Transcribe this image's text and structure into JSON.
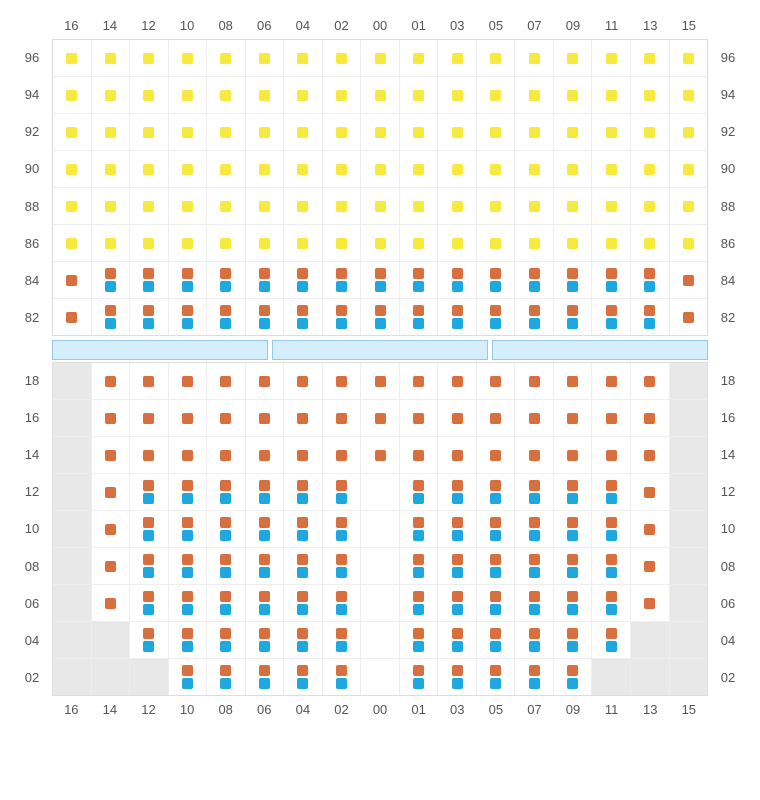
{
  "colors": {
    "yellow": "#f7e93e",
    "orange": "#d86f3f",
    "blue": "#1fa8e0",
    "gray": "#e8e8e8",
    "grid_border": "#eeeeee",
    "outer_border": "#dddddd",
    "label_color": "#555555",
    "divider_fill": "#d4eefc",
    "divider_border": "#95c9e6",
    "background": "#ffffff"
  },
  "typography": {
    "label_fontsize": 13,
    "font_family": "Arial"
  },
  "columns": [
    "16",
    "14",
    "12",
    "10",
    "08",
    "06",
    "04",
    "02",
    "00",
    "01",
    "03",
    "05",
    "07",
    "09",
    "11",
    "13",
    "15"
  ],
  "upper": {
    "rows": [
      "96",
      "94",
      "92",
      "90",
      "88",
      "86",
      "84",
      "82"
    ],
    "cells": [
      [
        "y",
        "y",
        "y",
        "y",
        "y",
        "y",
        "y",
        "y",
        "y",
        "y",
        "y",
        "y",
        "y",
        "y",
        "y",
        "y",
        "y"
      ],
      [
        "y",
        "y",
        "y",
        "y",
        "y",
        "y",
        "y",
        "y",
        "y",
        "y",
        "y",
        "y",
        "y",
        "y",
        "y",
        "y",
        "y"
      ],
      [
        "y",
        "y",
        "y",
        "y",
        "y",
        "y",
        "y",
        "y",
        "y",
        "y",
        "y",
        "y",
        "y",
        "y",
        "y",
        "y",
        "y"
      ],
      [
        "y",
        "y",
        "y",
        "y",
        "y",
        "y",
        "y",
        "y",
        "y",
        "y",
        "y",
        "y",
        "y",
        "y",
        "y",
        "y",
        "y"
      ],
      [
        "y",
        "y",
        "y",
        "y",
        "y",
        "y",
        "y",
        "y",
        "y",
        "y",
        "y",
        "y",
        "y",
        "y",
        "y",
        "y",
        "y"
      ],
      [
        "y",
        "y",
        "y",
        "y",
        "y",
        "y",
        "y",
        "y",
        "y",
        "y",
        "y",
        "y",
        "y",
        "y",
        "y",
        "y",
        "y"
      ],
      [
        "o",
        "ob",
        "ob",
        "ob",
        "ob",
        "ob",
        "ob",
        "ob",
        "ob",
        "ob",
        "ob",
        "ob",
        "ob",
        "ob",
        "ob",
        "ob",
        "o"
      ],
      [
        "o",
        "ob",
        "ob",
        "ob",
        "ob",
        "ob",
        "ob",
        "ob",
        "ob",
        "ob",
        "ob",
        "ob",
        "ob",
        "ob",
        "ob",
        "ob",
        "o"
      ]
    ]
  },
  "divider_segments": 3,
  "lower": {
    "rows": [
      "18",
      "16",
      "14",
      "12",
      "10",
      "08",
      "06",
      "04",
      "02"
    ],
    "cells": [
      [
        "g",
        "o",
        "o",
        "o",
        "o",
        "o",
        "o",
        "o",
        "o",
        "o",
        "o",
        "o",
        "o",
        "o",
        "o",
        "o",
        "g"
      ],
      [
        "g",
        "o",
        "o",
        "o",
        "o",
        "o",
        "o",
        "o",
        "o",
        "o",
        "o",
        "o",
        "o",
        "o",
        "o",
        "o",
        "g"
      ],
      [
        "g",
        "o",
        "o",
        "o",
        "o",
        "o",
        "o",
        "o",
        "o",
        "o",
        "o",
        "o",
        "o",
        "o",
        "o",
        "o",
        "g"
      ],
      [
        "g",
        "o",
        "ob",
        "ob",
        "ob",
        "ob",
        "ob",
        "ob",
        "",
        "ob",
        "ob",
        "ob",
        "ob",
        "ob",
        "ob",
        "o",
        "g"
      ],
      [
        "g",
        "o",
        "ob",
        "ob",
        "ob",
        "ob",
        "ob",
        "ob",
        "",
        "ob",
        "ob",
        "ob",
        "ob",
        "ob",
        "ob",
        "o",
        "g"
      ],
      [
        "g",
        "o",
        "ob",
        "ob",
        "ob",
        "ob",
        "ob",
        "ob",
        "",
        "ob",
        "ob",
        "ob",
        "ob",
        "ob",
        "ob",
        "o",
        "g"
      ],
      [
        "g",
        "o",
        "ob",
        "ob",
        "ob",
        "ob",
        "ob",
        "ob",
        "",
        "ob",
        "ob",
        "ob",
        "ob",
        "ob",
        "ob",
        "o",
        "g"
      ],
      [
        "g",
        "g",
        "ob",
        "ob",
        "ob",
        "ob",
        "ob",
        "ob",
        "",
        "ob",
        "ob",
        "ob",
        "ob",
        "ob",
        "ob",
        "g",
        "g"
      ],
      [
        "g",
        "g",
        "g",
        "ob",
        "ob",
        "ob",
        "ob",
        "ob",
        "",
        "ob",
        "ob",
        "ob",
        "ob",
        "ob",
        "g",
        "g",
        "g"
      ]
    ]
  }
}
